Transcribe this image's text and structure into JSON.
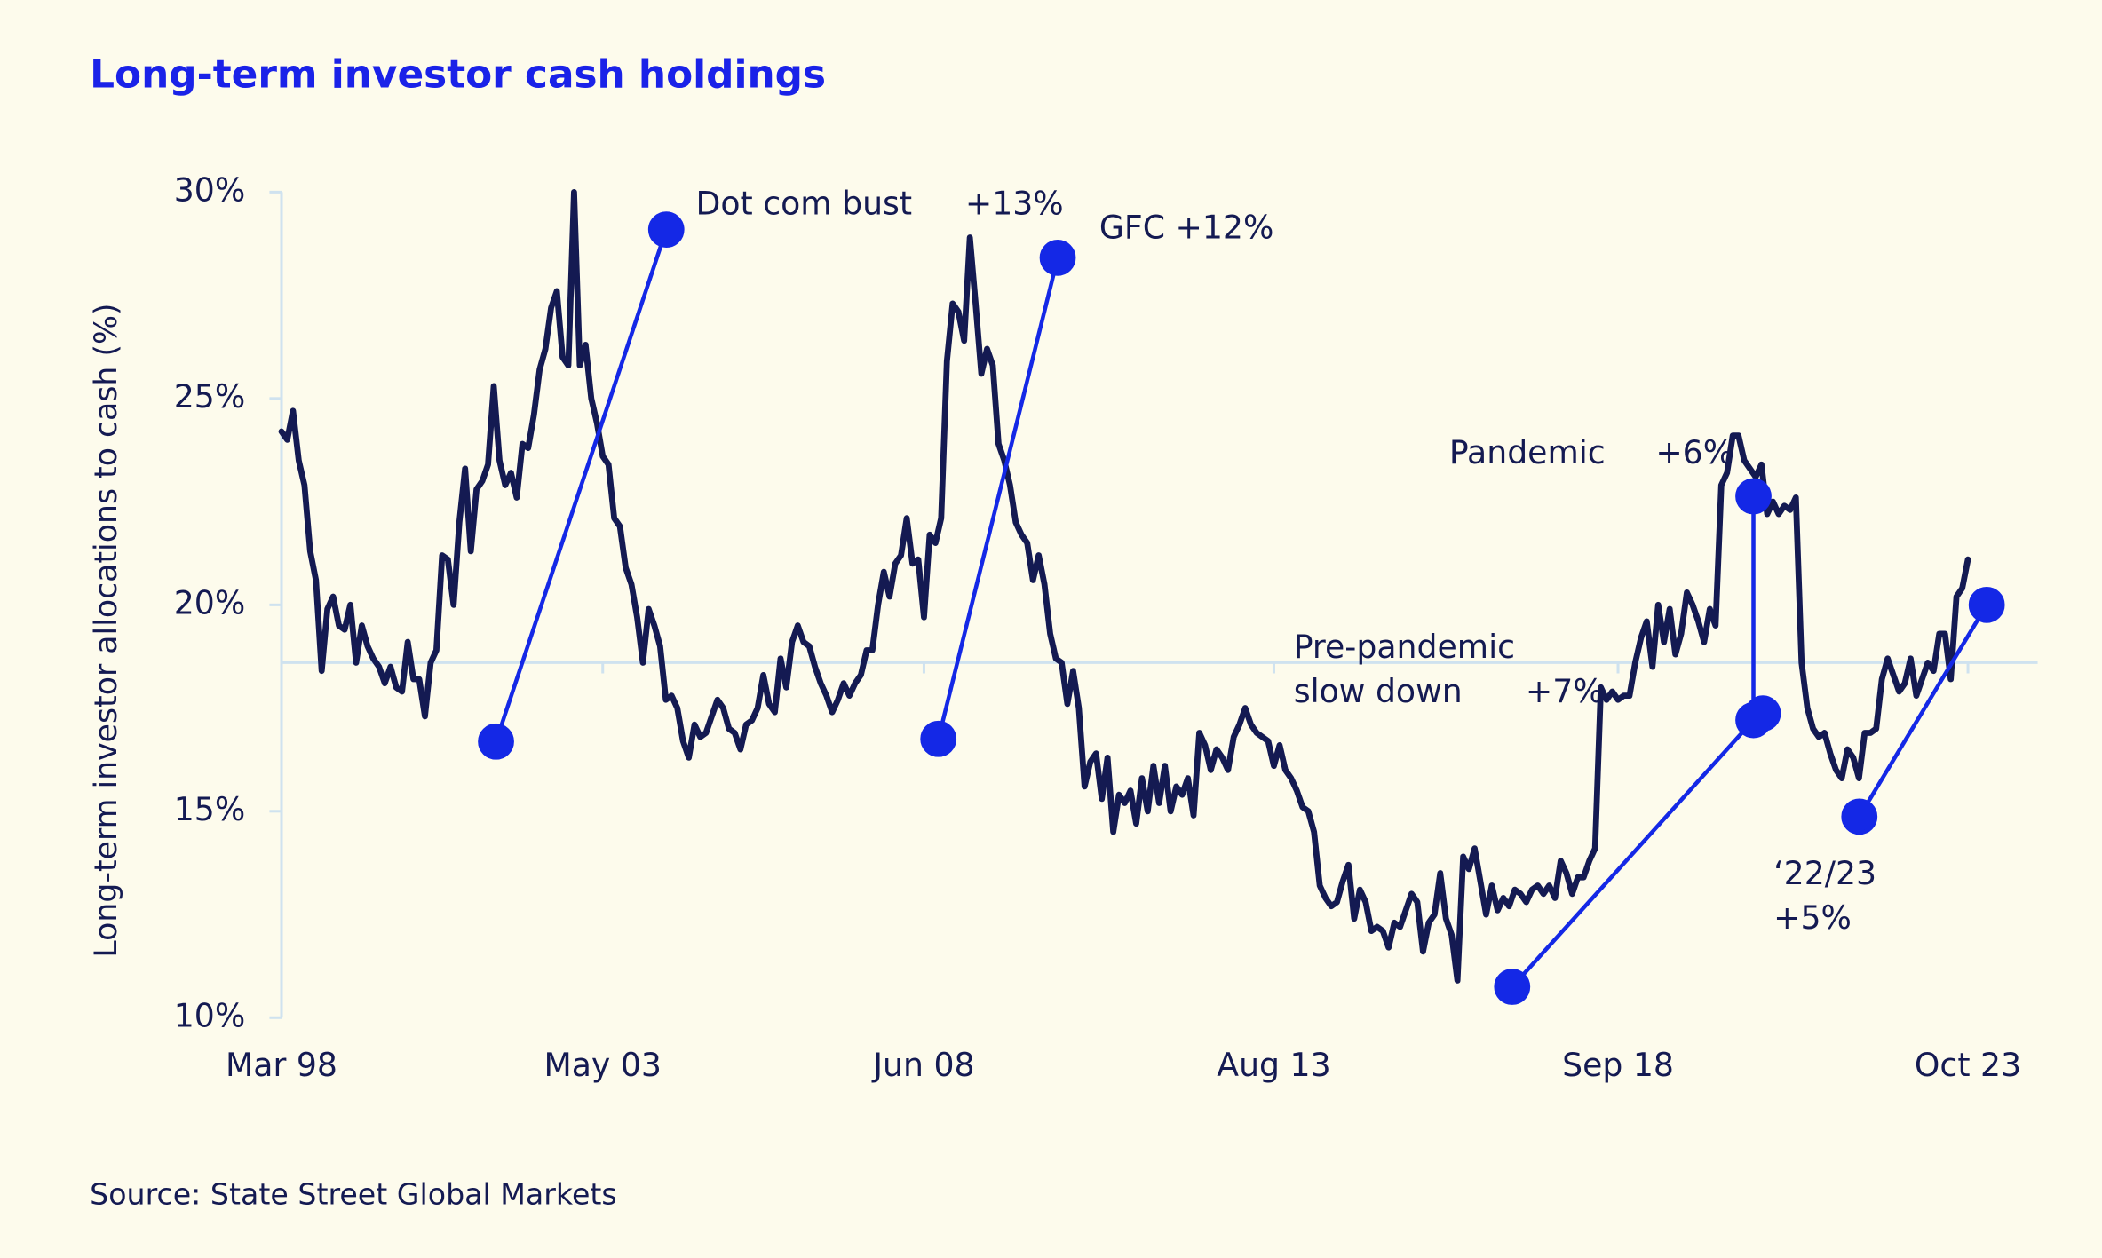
{
  "chart_data": {
    "type": "line",
    "title": "Long-term investor cash holdings",
    "y_label": "Long-term investor allocations to cash (%)",
    "source": "Source: State Street Global Markets",
    "color": "#141a52",
    "annotation_color": "#1428e6",
    "annotations": [
      "Dot com bust",
      "+13%",
      "GFC +12%",
      "Pandemic",
      "+6%",
      "Pre-pandemic",
      "slow down",
      "+7%",
      "‘22/23",
      "+5%"
    ],
    "ylim": [
      10,
      30
    ],
    "yticks": [
      {
        "value": 10,
        "label": "10%"
      },
      {
        "value": 15,
        "label": "15%"
      },
      {
        "value": 20,
        "label": "20%"
      },
      {
        "value": 25,
        "label": "25%"
      },
      {
        "value": 30,
        "label": "30%"
      }
    ],
    "reference_line": 18.6,
    "categories": [
      "Mar 98",
      null,
      null,
      null,
      null,
      null,
      null,
      null,
      null,
      null,
      null,
      null,
      null,
      null,
      null,
      null,
      null,
      null,
      null,
      null,
      null,
      null,
      null,
      null,
      null,
      null,
      null,
      null,
      null,
      null,
      null,
      null,
      null,
      null,
      null,
      null,
      null,
      null,
      null,
      null,
      null,
      null,
      null,
      null,
      null,
      null,
      null,
      null,
      null,
      null,
      null,
      null,
      null,
      null,
      null,
      null,
      "May 03",
      null,
      null,
      null,
      null,
      null,
      null,
      null,
      null,
      null,
      null,
      null,
      null,
      null,
      null,
      null,
      null,
      null,
      null,
      null,
      null,
      null,
      null,
      null,
      null,
      null,
      null,
      null,
      null,
      null,
      null,
      null,
      null,
      null,
      null,
      null,
      null,
      null,
      null,
      null,
      null,
      null,
      null,
      null,
      null,
      null,
      null,
      null,
      null,
      null,
      null,
      null,
      null,
      null,
      null,
      null,
      "Jun 08",
      null,
      null,
      null,
      null,
      null,
      null,
      null,
      null,
      null,
      null,
      null,
      null,
      null,
      null,
      null,
      null,
      null,
      null,
      null,
      null,
      null,
      null,
      null,
      null,
      null,
      null,
      null,
      null,
      null,
      null,
      null,
      null,
      null,
      null,
      null,
      null,
      null,
      null,
      null,
      null,
      null,
      null,
      null,
      null,
      null,
      null,
      null,
      null,
      null,
      null,
      null,
      null,
      null,
      null,
      null,
      null,
      null,
      null,
      null,
      null,
      "Aug 13",
      null,
      null,
      null,
      null,
      null,
      null,
      null,
      null,
      null,
      null,
      null,
      null,
      null,
      null,
      null,
      null,
      null,
      null,
      null,
      null,
      null,
      null,
      null,
      null,
      null,
      null,
      null,
      null,
      null,
      null,
      null,
      null,
      null,
      null,
      null,
      null,
      null,
      null,
      null,
      null,
      null,
      null,
      null,
      null,
      null,
      null,
      null,
      null,
      null,
      null,
      null,
      null,
      null,
      null,
      null,
      null,
      null,
      null,
      null,
      "Sep 18",
      null,
      null,
      null,
      null,
      null,
      null,
      null,
      null,
      null,
      null,
      null,
      null,
      null,
      null,
      null,
      null,
      null,
      null,
      null,
      null,
      null,
      null,
      null,
      null,
      null,
      null,
      null,
      null,
      null,
      null,
      null,
      null,
      null,
      null,
      null,
      null,
      null,
      null,
      null,
      null,
      null,
      null,
      null,
      null,
      null,
      null,
      null,
      null,
      null,
      null,
      null,
      null,
      null,
      null,
      null,
      null,
      null,
      null,
      null,
      null,
      "Oct 23"
    ],
    "values": [
      24.2,
      24.0,
      24.7,
      23.5,
      22.9,
      21.3,
      20.6,
      18.4,
      19.9,
      20.2,
      19.5,
      19.4,
      20.0,
      18.6,
      19.5,
      19.0,
      18.7,
      18.5,
      18.1,
      18.5,
      18.0,
      17.9,
      19.1,
      18.2,
      18.2,
      17.3,
      18.6,
      18.9,
      21.2,
      21.1,
      20.0,
      22.0,
      23.3,
      21.3,
      22.8,
      23.0,
      23.4,
      25.3,
      23.5,
      22.9,
      23.2,
      22.6,
      23.9,
      23.8,
      24.6,
      25.7,
      26.2,
      27.2,
      27.6,
      26.0,
      25.8,
      30.0,
      25.8,
      26.3,
      25.0,
      24.4,
      23.6,
      23.4,
      22.1,
      21.9,
      20.9,
      20.5,
      19.7,
      18.6,
      19.9,
      19.5,
      19.0,
      17.7,
      17.8,
      17.5,
      16.7,
      16.3,
      17.1,
      16.8,
      16.9,
      17.3,
      17.7,
      17.5,
      17.0,
      16.9,
      16.5,
      17.1,
      17.2,
      17.5,
      18.3,
      17.6,
      17.4,
      18.7,
      18.0,
      19.1,
      19.5,
      19.1,
      19.0,
      18.5,
      18.1,
      17.8,
      17.4,
      17.7,
      18.1,
      17.8,
      18.1,
      18.3,
      18.9,
      18.9,
      20.0,
      20.8,
      20.2,
      21.0,
      21.2,
      22.1,
      21.0,
      21.1,
      19.7,
      21.7,
      21.5,
      22.1,
      25.9,
      27.3,
      27.1,
      26.4,
      28.9,
      27.3,
      25.6,
      26.2,
      25.8,
      23.9,
      23.5,
      22.9,
      22.0,
      21.7,
      21.5,
      20.6,
      21.2,
      20.5,
      19.3,
      18.7,
      18.6,
      17.6,
      18.4,
      17.5,
      15.6,
      16.2,
      16.4,
      15.3,
      16.3,
      14.5,
      15.4,
      15.2,
      15.5,
      14.7,
      15.8,
      15.0,
      16.1,
      15.2,
      16.1,
      15.0,
      15.6,
      15.4,
      15.8,
      14.9,
      16.9,
      16.6,
      16.0,
      16.5,
      16.3,
      16.0,
      16.8,
      17.1,
      17.5,
      17.1,
      16.9,
      16.8,
      16.7,
      16.1,
      16.6,
      16.0,
      15.8,
      15.5,
      15.1,
      15.0,
      14.5,
      13.2,
      12.9,
      12.7,
      12.8,
      13.3,
      13.7,
      12.4,
      13.1,
      12.8,
      12.1,
      12.2,
      12.1,
      11.7,
      12.3,
      12.2,
      12.6,
      13.0,
      12.8,
      11.6,
      12.3,
      12.5,
      13.5,
      12.4,
      12.0,
      10.9,
      13.9,
      13.6,
      14.1,
      13.3,
      12.5,
      13.2,
      12.6,
      12.9,
      12.7,
      13.1,
      13.0,
      12.8,
      13.1,
      13.2,
      13.0,
      13.2,
      12.9,
      13.8,
      13.5,
      13.0,
      13.4,
      13.4,
      13.8,
      14.1,
      18.0,
      17.7,
      17.9,
      17.7,
      17.8,
      17.8,
      18.6,
      19.2,
      19.6,
      18.5,
      20.0,
      19.1,
      19.9,
      18.8,
      19.3,
      20.3,
      20.0,
      19.6,
      19.1,
      19.9,
      19.5,
      22.9,
      23.2,
      24.1,
      24.1,
      23.5,
      23.3,
      23.1,
      23.4,
      22.2,
      22.5,
      22.2,
      22.4,
      22.3,
      22.6,
      18.6,
      17.5,
      17.0,
      16.8,
      16.9,
      16.4,
      16.0,
      15.8,
      16.5,
      16.3,
      15.8,
      16.9,
      16.9,
      17.0,
      18.2,
      18.7,
      18.3,
      17.9,
      18.1,
      18.7,
      17.8,
      18.2,
      18.6,
      18.4,
      19.3,
      19.3,
      18.2,
      20.2,
      20.4,
      21.1
    ]
  }
}
